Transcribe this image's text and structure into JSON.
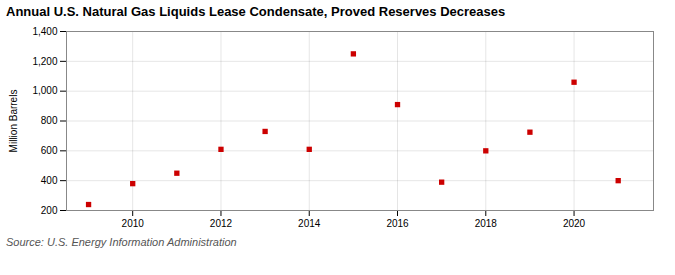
{
  "chart_data": {
    "type": "scatter",
    "title": "Annual U.S. Natural Gas Liquids Lease Condensate, Proved Reserves Decreases",
    "ylabel": "Million Barrels",
    "source": "Source: U.S. Energy Information Administration",
    "x": [
      2009,
      2010,
      2011,
      2012,
      2013,
      2014,
      2015,
      2016,
      2017,
      2018,
      2019,
      2020,
      2021
    ],
    "values": [
      240,
      380,
      450,
      610,
      730,
      610,
      1250,
      910,
      390,
      600,
      725,
      1060,
      400
    ],
    "color": "#cc0000",
    "marker": "square",
    "xlim": [
      2008.5,
      2021.8
    ],
    "xticks": [
      2010,
      2012,
      2014,
      2016,
      2018,
      2020
    ],
    "ylim": [
      200,
      1400
    ],
    "yticks": [
      200,
      400,
      600,
      800,
      {
        "value": 1000,
        "label": "1,000"
      },
      {
        "value": 1200,
        "label": "1,200"
      },
      {
        "value": 1400,
        "label": "1,400"
      }
    ],
    "grid": true
  }
}
